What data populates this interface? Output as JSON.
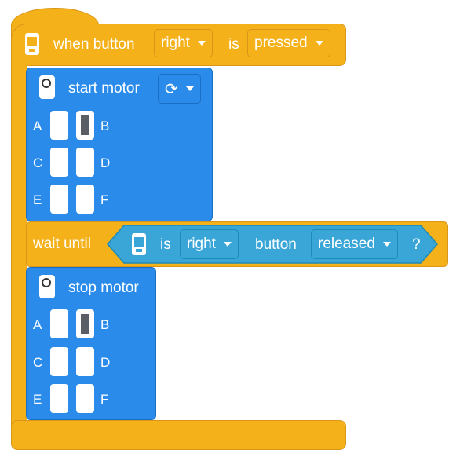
{
  "hat": {
    "when_button": "when button",
    "button_value": "right",
    "is": "is",
    "state_value": "pressed"
  },
  "start_block": {
    "title": "start motor",
    "ports": [
      "A",
      "B",
      "C",
      "D",
      "E",
      "F"
    ],
    "selected_port": "B"
  },
  "wait_block": {
    "label": "wait until",
    "is": "is",
    "button_value": "right",
    "button_word": "button",
    "state_value": "released",
    "question": "?"
  },
  "stop_block": {
    "title": "stop motor",
    "ports": [
      "A",
      "B",
      "C",
      "D",
      "E",
      "F"
    ],
    "selected_port": "B"
  },
  "colors": {
    "yellow": "#f4b11a",
    "blue": "#2a8bea",
    "cyan": "#3aa6d8"
  }
}
